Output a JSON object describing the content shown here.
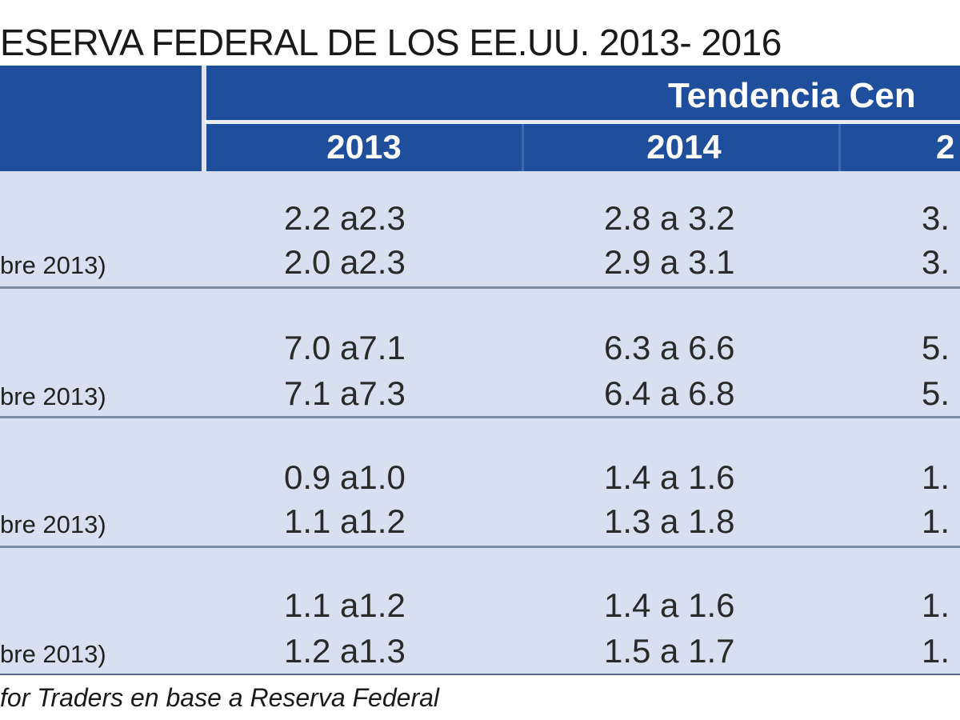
{
  "title": "ESERVA FEDERAL DE LOS EE.UU. 2013- 2016",
  "header": {
    "group_label": "Tendencia Cen",
    "years": [
      "2013",
      "2014",
      "2"
    ]
  },
  "rows": [
    {
      "label": "bre 2013)",
      "line1": [
        "2.2 a2.3",
        "2.8 a 3.2",
        "3."
      ],
      "line2": [
        "2.0 a2.3",
        "2.9 a 3.1",
        "3."
      ]
    },
    {
      "label": "bre 2013)",
      "line1": [
        "7.0 a7.1",
        "6.3 a 6.6",
        "5."
      ],
      "line2": [
        "7.1 a7.3",
        "6.4 a 6.8",
        "5."
      ]
    },
    {
      "label": "bre 2013)",
      "line1": [
        "0.9 a1.0",
        "1.4 a 1.6",
        "1."
      ],
      "line2": [
        "1.1 a1.2",
        "1.3 a 1.8",
        "1."
      ]
    },
    {
      "label": "bre 2013)",
      "line1": [
        "1.1 a1.2",
        "1.4 a 1.6",
        "1."
      ],
      "line2": [
        "1.2 a1.3",
        "1.5 a 1.7",
        "1."
      ]
    }
  ],
  "source": "for Traders en base a Reserva Federal",
  "colors": {
    "header_bg": "#1f4e9c",
    "body_bg": "#d7dff0",
    "separator": "#7d8aa3"
  }
}
